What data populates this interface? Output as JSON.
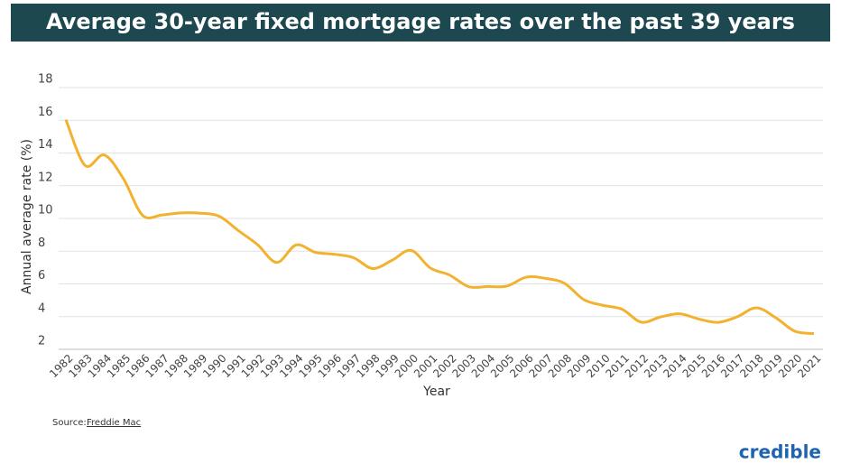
{
  "chart_data": {
    "type": "line",
    "title": "Average 30-year fixed mortgage rates over the past 39 years",
    "x_label": "Year",
    "y_label": "Annual average rate (%)",
    "source_prefix": "Source:",
    "source": "Freddie Mac",
    "brand": "credible",
    "categories": [
      "1982",
      "1983",
      "1984",
      "1985",
      "1986",
      "1987",
      "1988",
      "1989",
      "1990",
      "1991",
      "1992",
      "1993",
      "1994",
      "1995",
      "1996",
      "1997",
      "1998",
      "1999",
      "2000",
      "2001",
      "2002",
      "2003",
      "2004",
      "2005",
      "2006",
      "2007",
      "2008",
      "2009",
      "2010",
      "2011",
      "2012",
      "2013",
      "2014",
      "2015",
      "2016",
      "2017",
      "2018",
      "2019",
      "2020",
      "2021"
    ],
    "values": [
      16.04,
      13.24,
      13.88,
      12.43,
      10.19,
      10.21,
      10.34,
      10.32,
      10.13,
      9.25,
      8.39,
      7.31,
      8.38,
      7.93,
      7.81,
      7.6,
      6.94,
      7.44,
      8.05,
      6.97,
      6.54,
      5.83,
      5.84,
      5.87,
      6.41,
      6.34,
      6.03,
      5.04,
      4.69,
      4.45,
      3.66,
      3.98,
      4.17,
      3.85,
      3.65,
      3.99,
      4.54,
      3.94,
      3.11,
      2.96
    ],
    "color": "#f2b230",
    "ylim": [
      2,
      18
    ],
    "yticks": [
      2,
      4,
      6,
      8,
      10,
      12,
      14,
      16,
      18
    ],
    "grid": true
  }
}
